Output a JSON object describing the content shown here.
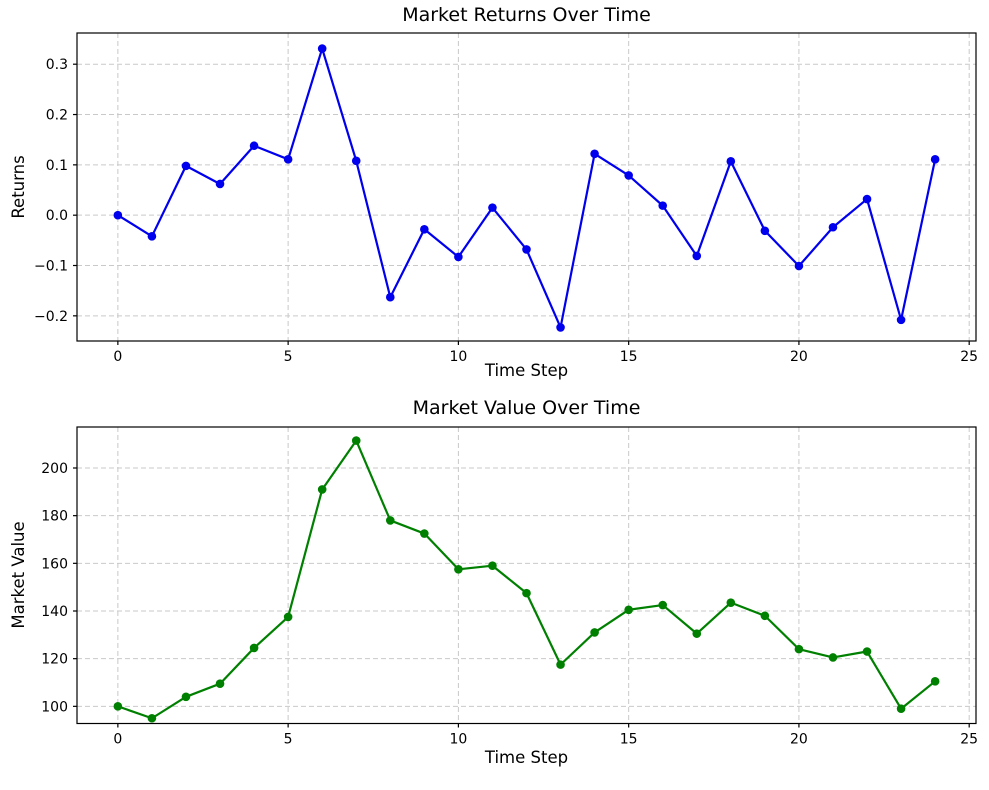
{
  "figure": {
    "background": "#ffffff",
    "text_color": "#000000",
    "grid_color": "#c9c9c9",
    "spine_color": "#000000"
  },
  "chart_data": [
    {
      "type": "line",
      "name": "market-returns",
      "title": "Market Returns Over Time",
      "xlabel": "Time Step",
      "ylabel": "Returns",
      "grid": true,
      "legend": "none",
      "line_color": "#0000ee",
      "marker": "o",
      "x": [
        0,
        1,
        2,
        3,
        4,
        5,
        6,
        7,
        8,
        9,
        10,
        11,
        12,
        13,
        14,
        15,
        16,
        17,
        18,
        19,
        20,
        21,
        22,
        23,
        24
      ],
      "y": [
        0.0,
        -0.042,
        0.098,
        0.062,
        0.138,
        0.111,
        0.331,
        0.108,
        -0.163,
        -0.028,
        -0.083,
        0.015,
        -0.068,
        -0.223,
        0.122,
        0.079,
        0.019,
        -0.081,
        0.107,
        -0.031,
        -0.101,
        -0.024,
        0.032,
        -0.208,
        0.111
      ],
      "xlim": [
        -1.2,
        25.2
      ],
      "ylim": [
        -0.25,
        0.362
      ],
      "xticks": [
        0,
        5,
        10,
        15,
        20,
        25
      ],
      "yticks": [
        0.3,
        0.2,
        0.1,
        0.0,
        -0.1,
        -0.2
      ],
      "xtick_labels": [
        "0",
        "5",
        "10",
        "15",
        "20",
        "25"
      ],
      "ytick_labels": [
        "0.3",
        "0.2",
        "0.1",
        "0.0",
        "−0.1",
        "−0.2"
      ]
    },
    {
      "type": "line",
      "name": "market-value",
      "title": "Market Value Over Time",
      "xlabel": "Time Step",
      "ylabel": "Market Value",
      "grid": true,
      "legend": "none",
      "line_color": "#008000",
      "marker": "o",
      "x": [
        0,
        1,
        2,
        3,
        4,
        5,
        6,
        7,
        8,
        9,
        10,
        11,
        12,
        13,
        14,
        15,
        16,
        17,
        18,
        19,
        20,
        21,
        22,
        23,
        24
      ],
      "y": [
        100,
        95,
        104,
        109.5,
        124.5,
        137.5,
        191,
        211.5,
        178,
        172.5,
        157.5,
        159,
        147.5,
        117.5,
        131,
        140.5,
        142.5,
        130.5,
        143.5,
        138,
        124,
        120.5,
        123,
        99,
        110.5
      ],
      "xlim": [
        -1.2,
        25.2
      ],
      "ylim": [
        92.8,
        217.2
      ],
      "xticks": [
        0,
        5,
        10,
        15,
        20,
        25
      ],
      "yticks": [
        200,
        180,
        160,
        140,
        120,
        100
      ],
      "xtick_labels": [
        "0",
        "5",
        "10",
        "15",
        "20",
        "25"
      ],
      "ytick_labels": [
        "200",
        "180",
        "160",
        "140",
        "120",
        "100"
      ]
    }
  ]
}
